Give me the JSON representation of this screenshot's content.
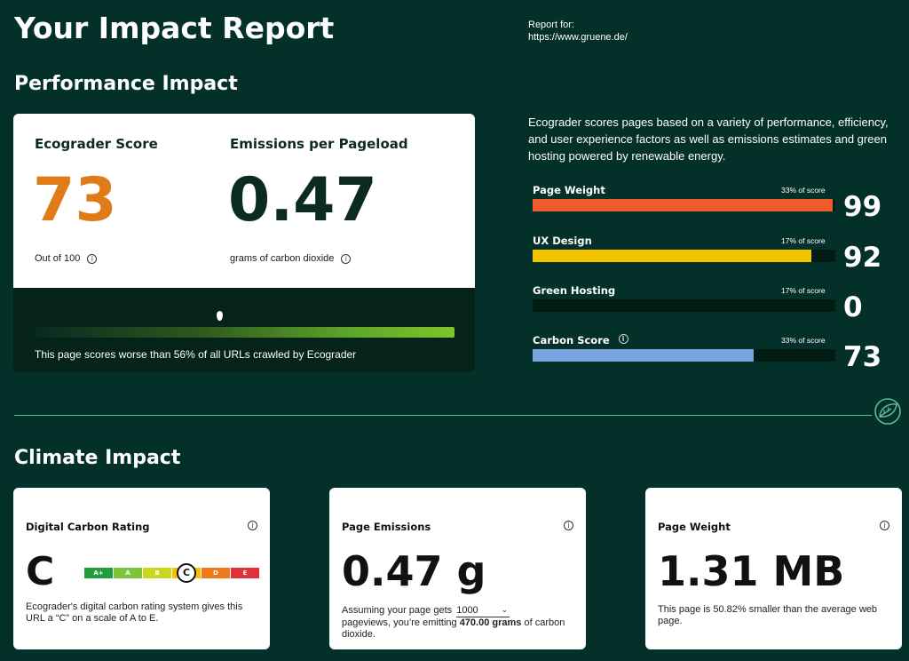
{
  "header": {
    "title": "Your Impact Report",
    "report_for_label": "Report for:",
    "report_url": "https://www.gruene.de/"
  },
  "performance": {
    "section_title": "Performance Impact",
    "score_label": "Ecograder Score",
    "score_value": "73",
    "score_subtext": "Out of 100",
    "emissions_label": "Emissions per Pageload",
    "emissions_value": "0.47",
    "emissions_subtext": "grams of carbon dioxide",
    "comparison_position": 0.44,
    "comparison_text": "This page scores worse than 56% of all URLs crawled by Ecograder",
    "description": "Ecograder scores pages based on a variety of performance, efficiency, and user experience factors as well as emissions estimates and green hosting powered by renewable energy.",
    "metrics": [
      {
        "name": "Page Weight",
        "share": "33% of score",
        "score": "99",
        "fill": 0.99,
        "color": "#f15a2b",
        "info": false
      },
      {
        "name": "UX Design",
        "share": "17% of score",
        "score": "92",
        "fill": 0.92,
        "color": "#f5c400",
        "info": false
      },
      {
        "name": "Green Hosting",
        "share": "17% of score",
        "score": "0",
        "fill": 0.0,
        "color": "#7aa3e3",
        "info": false
      },
      {
        "name": "Carbon Score",
        "share": "33% of score",
        "score": "73",
        "fill": 0.73,
        "color": "#7aa3e3",
        "info": true
      }
    ],
    "score_color": "#e07b1a"
  },
  "climate": {
    "section_title": "Climate Impact",
    "rating_card": {
      "title": "Digital Carbon Rating",
      "letter": "C",
      "grades": [
        {
          "label": "A+",
          "color": "#1e9e3c"
        },
        {
          "label": "A",
          "color": "#7cc43a"
        },
        {
          "label": "B",
          "color": "#c8d81c"
        },
        {
          "label": "C",
          "color": "#f5c400"
        },
        {
          "label": "D",
          "color": "#f07a1a"
        },
        {
          "label": "E",
          "color": "#e0303a"
        }
      ],
      "active_grade": "C",
      "description": "Ecograder's digital carbon rating system gives this URL a “C” on a scale of A to E."
    },
    "emissions_card": {
      "title": "Page Emissions",
      "value": "0.47 g",
      "text_before": "Assuming your page gets",
      "pageviews": "1000",
      "text_middle": "pageviews, you’re emitting",
      "emitted": "470.00 grams",
      "text_after": "of carbon dioxide."
    },
    "weight_card": {
      "title": "Page Weight",
      "value": "1.31 MB",
      "description": "This page is 50.82% smaller than the average web page."
    }
  },
  "icons": {
    "info": "info-icon",
    "logo": "leaf-logo-icon"
  }
}
